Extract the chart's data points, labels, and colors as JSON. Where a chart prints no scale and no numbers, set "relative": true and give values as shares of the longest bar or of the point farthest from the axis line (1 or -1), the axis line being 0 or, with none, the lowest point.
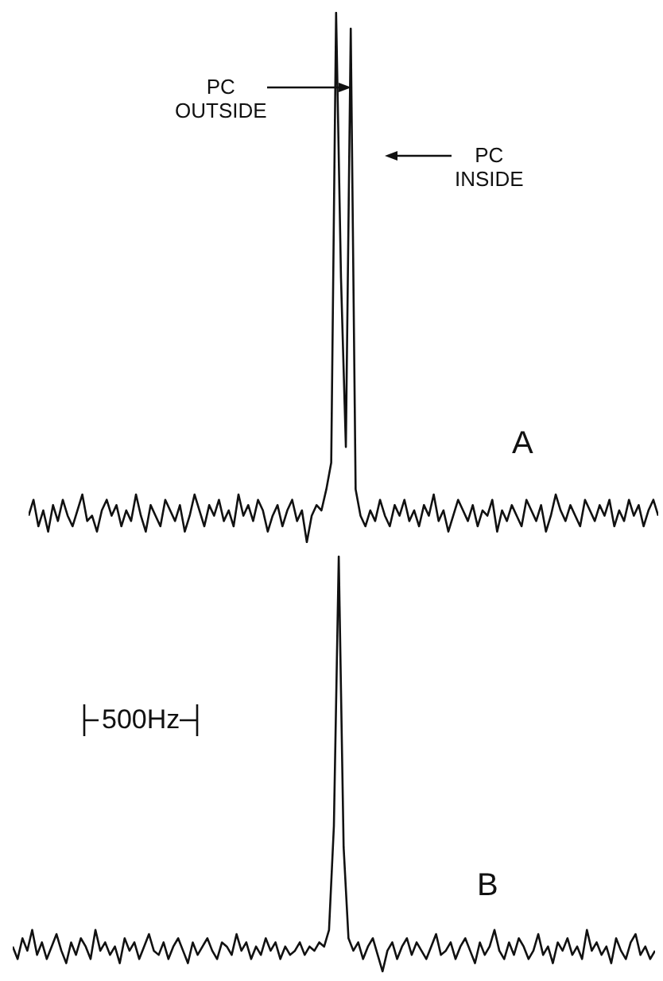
{
  "chart_data": [
    {
      "type": "line",
      "title": "A",
      "relative": true,
      "color": "#111111",
      "annotations": [
        "PC OUTSIDE",
        "PC INSIDE"
      ],
      "categories": [
        null,
        null,
        null,
        null,
        null,
        null,
        null,
        null,
        null,
        null,
        null,
        null,
        null,
        null,
        null,
        null,
        null,
        null,
        null,
        null,
        null,
        null,
        null,
        null,
        null,
        null,
        null,
        null,
        null,
        null,
        null,
        null,
        null,
        null,
        null,
        null,
        null,
        null,
        null,
        null,
        null,
        null,
        null,
        null,
        null,
        null,
        null,
        null,
        null,
        null,
        null,
        null,
        null,
        null,
        null,
        null,
        null,
        null,
        null,
        null,
        null,
        null,
        null,
        null,
        null,
        null,
        null,
        null,
        null,
        null,
        null,
        null,
        null,
        null,
        null,
        null,
        null,
        null,
        null,
        null,
        null,
        null,
        null,
        null,
        null,
        null,
        null,
        null,
        null,
        null,
        null,
        null,
        null,
        null,
        null,
        null,
        null,
        null,
        null,
        null,
        null,
        null,
        null,
        null,
        null,
        null,
        null,
        null,
        null,
        null,
        null,
        null,
        null,
        null,
        null,
        null,
        null,
        null,
        null,
        null,
        null,
        null,
        null,
        null,
        null,
        null,
        null,
        null,
        null,
        null
      ],
      "values": [
        0.05,
        0.08,
        0.03,
        0.06,
        0.02,
        0.07,
        0.04,
        0.08,
        0.05,
        0.03,
        0.06,
        0.09,
        0.04,
        0.05,
        0.02,
        0.06,
        0.08,
        0.05,
        0.07,
        0.03,
        0.06,
        0.04,
        0.09,
        0.05,
        0.02,
        0.07,
        0.05,
        0.03,
        0.08,
        0.06,
        0.04,
        0.07,
        0.02,
        0.05,
        0.09,
        0.06,
        0.03,
        0.07,
        0.05,
        0.08,
        0.04,
        0.06,
        0.03,
        0.09,
        0.05,
        0.07,
        0.04,
        0.08,
        0.06,
        0.02,
        0.05,
        0.07,
        0.03,
        0.06,
        0.08,
        0.04,
        0.06,
        0,
        0.05,
        0.07,
        0.06,
        0.1,
        0.15,
        1,
        0.5,
        0.18,
        0.97,
        0.1,
        0.05,
        0.03,
        0.06,
        0.04,
        0.08,
        0.05,
        0.03,
        0.07,
        0.05,
        0.08,
        0.04,
        0.06,
        0.03,
        0.07,
        0.05,
        0.09,
        0.04,
        0.06,
        0.02,
        0.05,
        0.08,
        0.06,
        0.04,
        0.07,
        0.03,
        0.06,
        0.05,
        0.08,
        0.02,
        0.06,
        0.04,
        0.07,
        0.05,
        0.03,
        0.08,
        0.06,
        0.04,
        0.07,
        0.02,
        0.05,
        0.09,
        0.06,
        0.04,
        0.07,
        0.05,
        0.03,
        0.08,
        0.06,
        0.04,
        0.07,
        0.05,
        0.08,
        0.03,
        0.06,
        0.04,
        0.08,
        0.05,
        0.07,
        0.03,
        0.06,
        0.08,
        0.05
      ]
    },
    {
      "type": "line",
      "title": "B",
      "relative": true,
      "color": "#111111",
      "annotations": [
        "500Hz"
      ],
      "categories": [
        null,
        null,
        null,
        null,
        null,
        null,
        null,
        null,
        null,
        null,
        null,
        null,
        null,
        null,
        null,
        null,
        null,
        null,
        null,
        null,
        null,
        null,
        null,
        null,
        null,
        null,
        null,
        null,
        null,
        null,
        null,
        null,
        null,
        null,
        null,
        null,
        null,
        null,
        null,
        null,
        null,
        null,
        null,
        null,
        null,
        null,
        null,
        null,
        null,
        null,
        null,
        null,
        null,
        null,
        null,
        null,
        null,
        null,
        null,
        null,
        null,
        null,
        null,
        null,
        null,
        null,
        null,
        null,
        null,
        null,
        null,
        null,
        null,
        null,
        null,
        null,
        null,
        null,
        null,
        null,
        null,
        null,
        null,
        null,
        null,
        null,
        null,
        null,
        null,
        null,
        null,
        null,
        null,
        null,
        null,
        null,
        null,
        null,
        null,
        null,
        null,
        null,
        null,
        null,
        null,
        null,
        null,
        null,
        null,
        null,
        null,
        null,
        null,
        null,
        null,
        null,
        null,
        null,
        null,
        null,
        null,
        null,
        null,
        null,
        null,
        null,
        null,
        null,
        null,
        null,
        null,
        null,
        null
      ],
      "values": [
        0.06,
        0.03,
        0.08,
        0.05,
        0.1,
        0.04,
        0.07,
        0.03,
        0.06,
        0.09,
        0.05,
        0.02,
        0.07,
        0.04,
        0.08,
        0.06,
        0.03,
        0.1,
        0.05,
        0.07,
        0.04,
        0.06,
        0.02,
        0.08,
        0.05,
        0.07,
        0.03,
        0.06,
        0.09,
        0.05,
        0.04,
        0.07,
        0.03,
        0.06,
        0.08,
        0.05,
        0.02,
        0.07,
        0.04,
        0.06,
        0.08,
        0.05,
        0.03,
        0.07,
        0.06,
        0.04,
        0.09,
        0.05,
        0.07,
        0.03,
        0.06,
        0.04,
        0.08,
        0.05,
        0.07,
        0.03,
        0.06,
        0.04,
        0.05,
        0.07,
        0.04,
        0.06,
        0.05,
        0.07,
        0.06,
        0.1,
        0.35,
        1,
        0.3,
        0.08,
        0.05,
        0.07,
        0.03,
        0.06,
        0.08,
        0.04,
        0,
        0.05,
        0.07,
        0.03,
        0.06,
        0.08,
        0.04,
        0.07,
        0.05,
        0.03,
        0.06,
        0.09,
        0.04,
        0.05,
        0.07,
        0.03,
        0.06,
        0.08,
        0.05,
        0.02,
        0.07,
        0.04,
        0.06,
        0.1,
        0.05,
        0.03,
        0.07,
        0.04,
        0.08,
        0.06,
        0.03,
        0.05,
        0.09,
        0.04,
        0.06,
        0.02,
        0.07,
        0.05,
        0.08,
        0.04,
        0.06,
        0.03,
        0.1,
        0.05,
        0.07,
        0.04,
        0.06,
        0.02,
        0.08,
        0.05,
        0.03,
        0.07,
        0.09,
        0.04,
        0.06,
        0.03,
        0.05
      ]
    }
  ]
}
